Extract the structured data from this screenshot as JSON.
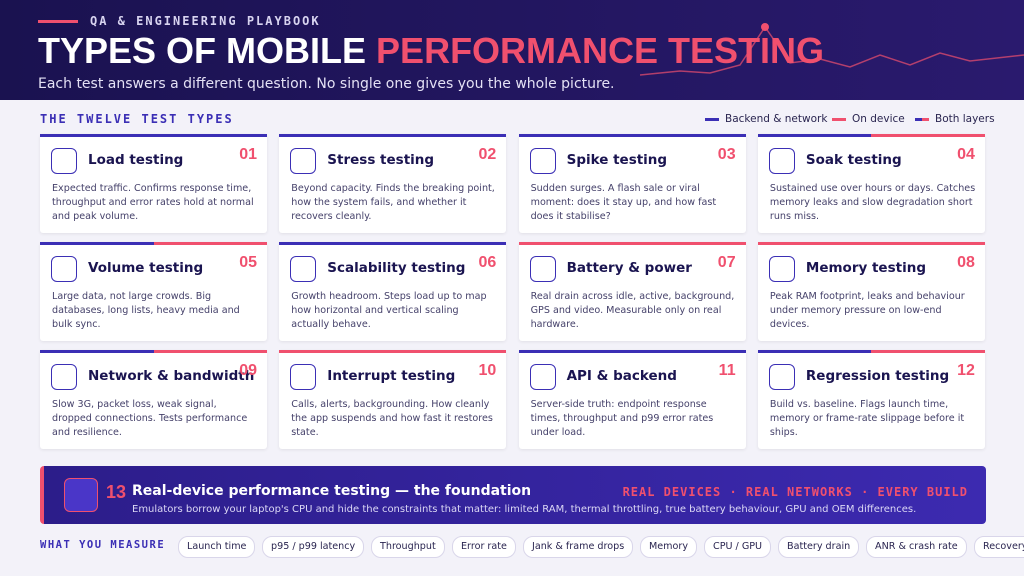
{
  "header": {
    "eyebrow": "QA & ENGINEERING PLAYBOOK",
    "title_start": "TYPES OF MOBILE",
    "title_accent": "PERFORMANCE TESTING",
    "subtitle": "Each test answers a different question. No single one gives you the whole picture."
  },
  "section_title": "THE TWELVE TEST TYPES",
  "legend": [
    {
      "label": "Backend & network",
      "colors": [
        "#3b2fb5"
      ]
    },
    {
      "label": "On device",
      "colors": [
        "#f0506e"
      ]
    },
    {
      "label": "Both layers",
      "colors": [
        "#3b2fb5",
        "#f0506e"
      ]
    }
  ],
  "cards": [
    {
      "number": "01",
      "title": "Load testing",
      "description": "Expected traffic. Confirms response time, throughput and error rates hold at normal and peak volume.",
      "colors": [
        "#3b2fb5"
      ]
    },
    {
      "number": "02",
      "title": "Stress testing",
      "description": "Beyond capacity. Finds the breaking point, how the system fails, and whether it recovers cleanly.",
      "colors": [
        "#3b2fb5"
      ]
    },
    {
      "number": "03",
      "title": "Spike testing",
      "description": "Sudden surges. A flash sale or viral moment: does it stay up, and how fast does it stabilise?",
      "colors": [
        "#3b2fb5"
      ]
    },
    {
      "number": "04",
      "title": "Soak testing",
      "description": "Sustained use over hours or days. Catches memory leaks and slow degradation short runs miss.",
      "colors": [
        "#3b2fb5",
        "#f0506e"
      ]
    },
    {
      "number": "05",
      "title": "Volume testing",
      "description": "Large data, not large crowds. Big databases, long lists, heavy media and bulk sync.",
      "colors": [
        "#3b2fb5",
        "#f0506e"
      ]
    },
    {
      "number": "06",
      "title": "Scalability testing",
      "description": "Growth headroom. Steps load up to map how horizontal and vertical scaling actually behave.",
      "colors": [
        "#3b2fb5"
      ]
    },
    {
      "number": "07",
      "title": "Battery & power",
      "description": "Real drain across idle, active, background, GPS and video. Measurable only on real hardware.",
      "colors": [
        "#f0506e"
      ]
    },
    {
      "number": "08",
      "title": "Memory testing",
      "description": "Peak RAM footprint, leaks and behaviour under memory pressure on low-end devices.",
      "colors": [
        "#f0506e"
      ]
    },
    {
      "number": "09",
      "title": "Network & bandwidth",
      "description": "Slow 3G, packet loss, weak signal, dropped connections. Tests performance and resilience.",
      "colors": [
        "#3b2fb5",
        "#f0506e"
      ]
    },
    {
      "number": "10",
      "title": "Interrupt testing",
      "description": "Calls, alerts, backgrounding. How cleanly the app suspends and how fast it restores state.",
      "colors": [
        "#f0506e"
      ]
    },
    {
      "number": "11",
      "title": "API & backend",
      "description": "Server-side truth: endpoint response times, throughput and p99 error rates under load.",
      "colors": [
        "#3b2fb5"
      ]
    },
    {
      "number": "12",
      "title": "Regression testing",
      "description": "Build vs. baseline. Flags launch time, memory or frame-rate slippage before it ships.",
      "colors": [
        "#3b2fb5",
        "#f0506e"
      ]
    }
  ],
  "foundation": {
    "number": "13",
    "title": "Real-device performance testing — the foundation",
    "tagline": "REAL DEVICES · REAL NETWORKS · EVERY BUILD",
    "description": "Emulators borrow your laptop's CPU and hide the constraints that matter: limited RAM, thermal throttling, true battery behaviour, GPU and OEM differences."
  },
  "measures": {
    "label": "WHAT YOU MEASURE",
    "items": [
      "Launch time",
      "p95 / p99 latency",
      "Throughput",
      "Error rate",
      "Jank & frame drops",
      "Memory",
      "CPU / GPU",
      "Battery drain",
      "ANR & crash rate",
      "Recovery time"
    ]
  }
}
